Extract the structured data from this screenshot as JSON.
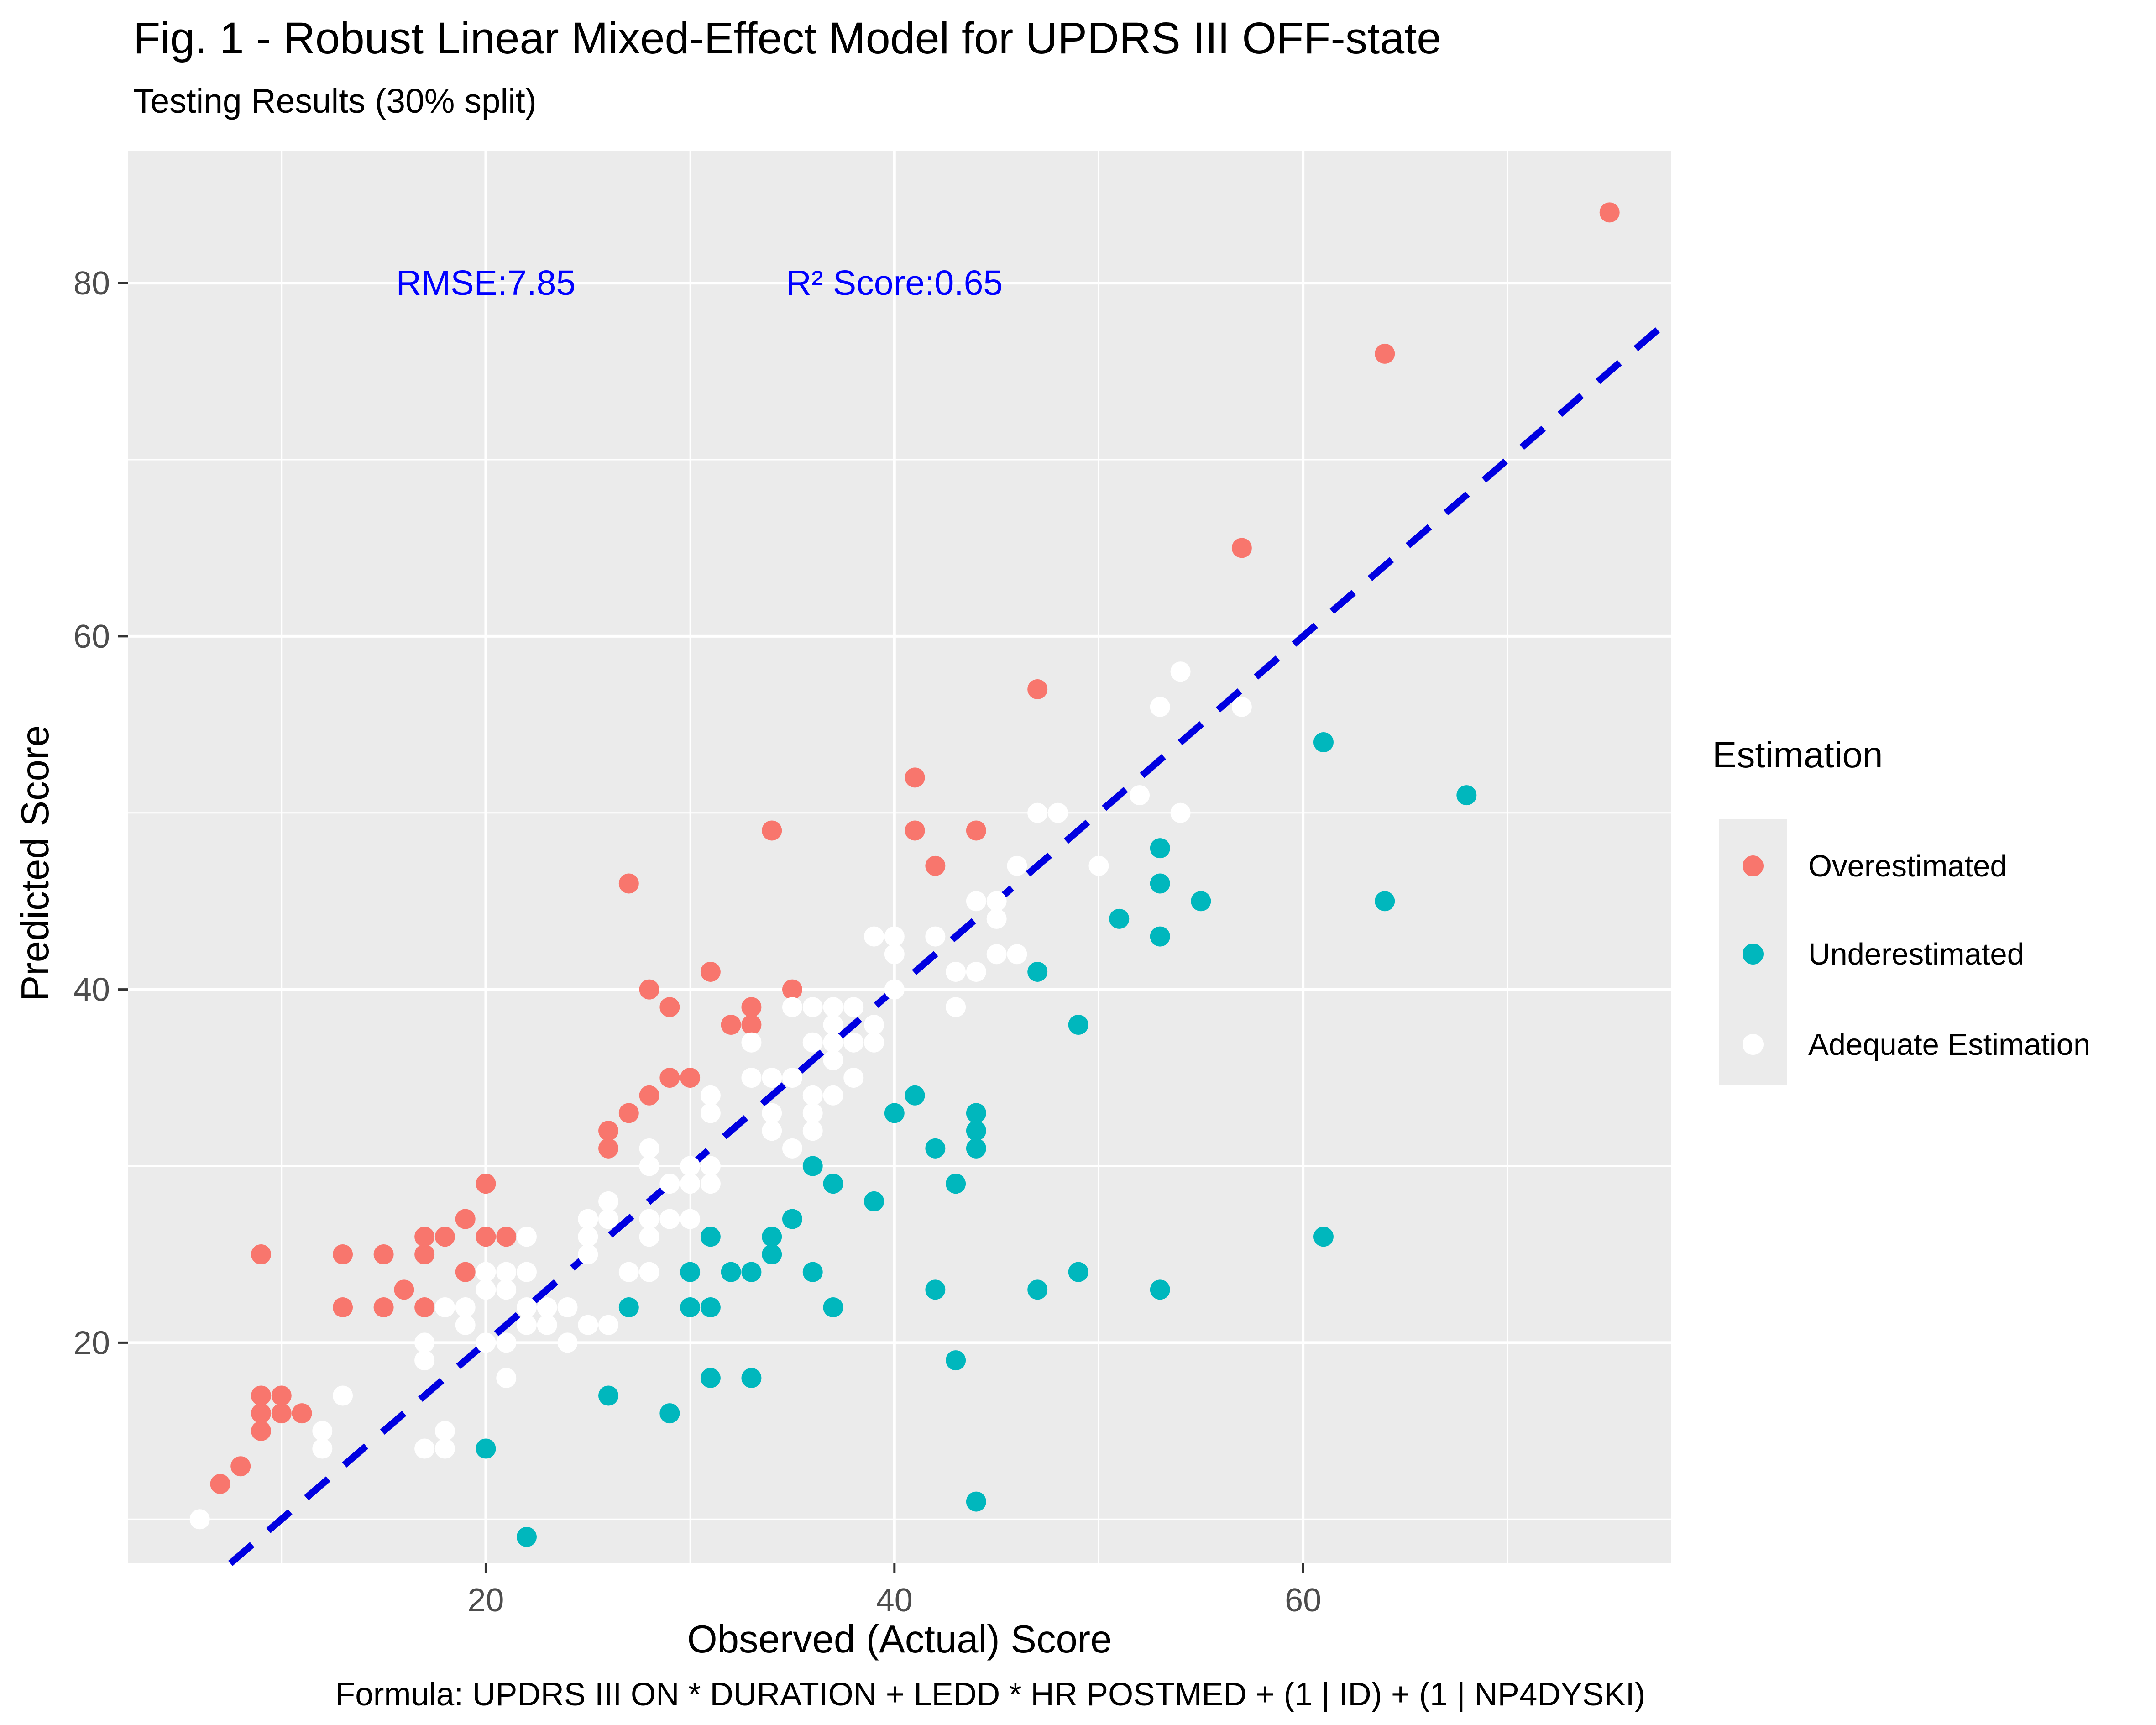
{
  "title": "Fig. 1 - Robust Linear Mixed-Effect Model for UPDRS III OFF-state",
  "subtitle": "Testing Results (30% split)",
  "caption": "Formula: UPDRS III ON * DURATION + LEDD * HR POSTMED + (1 | ID) + (1 | NP4DYSKI)",
  "colors": {
    "overestimated": "#F8766D",
    "underestimated": "#00B7BD",
    "adequate": "#FFFFFF",
    "panel_bg": "#EBEBEB",
    "grid": "#FFFFFF",
    "annotation_blue": "#0000FF",
    "identity_line_blue": "#0000E0",
    "tick_label": "#4D4D4D",
    "text": "#000000"
  },
  "legend": {
    "title": "Estimation",
    "items": [
      {
        "label": "Overestimated",
        "color_key": "overestimated"
      },
      {
        "label": "Underestimated",
        "color_key": "underestimated"
      },
      {
        "label": "Adequate Estimation",
        "color_key": "adequate"
      }
    ]
  },
  "chart_data": {
    "type": "scatter",
    "title": "Fig. 1 - Robust Linear Mixed-Effect Model for UPDRS III OFF-state",
    "subtitle": "Testing Results (30% split)",
    "xlabel": "Observed (Actual) Score",
    "ylabel": "Predicted Score",
    "xlim": [
      2.5,
      78
    ],
    "ylim": [
      7.5,
      87.5
    ],
    "x_ticks": [
      20,
      40,
      60
    ],
    "x_minor_ticks": [
      10,
      30,
      50,
      70
    ],
    "y_ticks": [
      20,
      40,
      60,
      80
    ],
    "y_minor_ticks": [
      10,
      30,
      50,
      70
    ],
    "grid": true,
    "legend_position": "right",
    "annotations": [
      {
        "text": "RMSE:7.85",
        "x": 20,
        "y": 80
      },
      {
        "text": "R² Score:0.65",
        "x": 40,
        "y": 80
      }
    ],
    "identity_line": {
      "style": "dashed",
      "equation": "y = x",
      "from": [
        7.5,
        7.5
      ],
      "to": [
        78,
        78
      ]
    },
    "series": [
      {
        "name": "Overestimated",
        "color_key": "overestimated",
        "points": [
          [
            75,
            84
          ],
          [
            64,
            76
          ],
          [
            57,
            65
          ],
          [
            47,
            57
          ],
          [
            41,
            52
          ],
          [
            44,
            49
          ],
          [
            41,
            49
          ],
          [
            34,
            49
          ],
          [
            42,
            47
          ],
          [
            27,
            46
          ],
          [
            35,
            40
          ],
          [
            31,
            41
          ],
          [
            28,
            40
          ],
          [
            29,
            39
          ],
          [
            33,
            39
          ],
          [
            32,
            38
          ],
          [
            33,
            38
          ],
          [
            28,
            34
          ],
          [
            29,
            35
          ],
          [
            30,
            35
          ],
          [
            27,
            33
          ],
          [
            26,
            32
          ],
          [
            26,
            31
          ],
          [
            20,
            29
          ],
          [
            19,
            27
          ],
          [
            17,
            26
          ],
          [
            18,
            26
          ],
          [
            20,
            26
          ],
          [
            21,
            26
          ],
          [
            9,
            25
          ],
          [
            13,
            25
          ],
          [
            15,
            25
          ],
          [
            17,
            25
          ],
          [
            19,
            24
          ],
          [
            16,
            23
          ],
          [
            13,
            22
          ],
          [
            15,
            22
          ],
          [
            17,
            22
          ],
          [
            9,
            17
          ],
          [
            10,
            17
          ],
          [
            9,
            16
          ],
          [
            10,
            16
          ],
          [
            11,
            16
          ],
          [
            9,
            15
          ],
          [
            8,
            13
          ],
          [
            7,
            12
          ]
        ]
      },
      {
        "name": "Underestimated",
        "color_key": "underestimated",
        "points": [
          [
            61,
            54
          ],
          [
            68,
            51
          ],
          [
            53,
            48
          ],
          [
            53,
            46
          ],
          [
            55,
            45
          ],
          [
            64,
            45
          ],
          [
            51,
            44
          ],
          [
            53,
            43
          ],
          [
            47,
            41
          ],
          [
            49,
            38
          ],
          [
            41,
            34
          ],
          [
            40,
            33
          ],
          [
            44,
            33
          ],
          [
            44,
            32
          ],
          [
            44,
            31
          ],
          [
            42,
            31
          ],
          [
            43,
            29
          ],
          [
            36,
            30
          ],
          [
            37,
            29
          ],
          [
            39,
            28
          ],
          [
            35,
            27
          ],
          [
            34,
            26
          ],
          [
            34,
            25
          ],
          [
            31,
            26
          ],
          [
            30,
            24
          ],
          [
            32,
            24
          ],
          [
            33,
            24
          ],
          [
            36,
            24
          ],
          [
            30,
            22
          ],
          [
            31,
            22
          ],
          [
            37,
            22
          ],
          [
            42,
            23
          ],
          [
            47,
            23
          ],
          [
            49,
            24
          ],
          [
            53,
            23
          ],
          [
            61,
            26
          ],
          [
            43,
            19
          ],
          [
            31,
            18
          ],
          [
            33,
            18
          ],
          [
            29,
            16
          ],
          [
            26,
            17
          ],
          [
            27,
            22
          ],
          [
            20,
            14
          ],
          [
            22,
            9
          ],
          [
            44,
            11
          ]
        ]
      },
      {
        "name": "Adequate Estimation",
        "color_key": "adequate",
        "points": [
          [
            54,
            58
          ],
          [
            53,
            56
          ],
          [
            57,
            56
          ],
          [
            52,
            51
          ],
          [
            54,
            50
          ],
          [
            50,
            47
          ],
          [
            47,
            50
          ],
          [
            48,
            50
          ],
          [
            46,
            47
          ],
          [
            44,
            45
          ],
          [
            45,
            45
          ],
          [
            45,
            44
          ],
          [
            42,
            43
          ],
          [
            39,
            43
          ],
          [
            40,
            43
          ],
          [
            40,
            42
          ],
          [
            45,
            42
          ],
          [
            46,
            42
          ],
          [
            43,
            41
          ],
          [
            44,
            41
          ],
          [
            40,
            40
          ],
          [
            43,
            39
          ],
          [
            35,
            39
          ],
          [
            36,
            39
          ],
          [
            37,
            39
          ],
          [
            38,
            39
          ],
          [
            37,
            38
          ],
          [
            39,
            38
          ],
          [
            36,
            37
          ],
          [
            37,
            37
          ],
          [
            38,
            37
          ],
          [
            39,
            37
          ],
          [
            33,
            37
          ],
          [
            37,
            36
          ],
          [
            33,
            35
          ],
          [
            34,
            35
          ],
          [
            35,
            35
          ],
          [
            38,
            35
          ],
          [
            36,
            34
          ],
          [
            37,
            34
          ],
          [
            34,
            33
          ],
          [
            34,
            32
          ],
          [
            36,
            33
          ],
          [
            36,
            32
          ],
          [
            35,
            31
          ],
          [
            31,
            34
          ],
          [
            31,
            33
          ],
          [
            28,
            31
          ],
          [
            28,
            30
          ],
          [
            30,
            30
          ],
          [
            31,
            30
          ],
          [
            29,
            29
          ],
          [
            30,
            29
          ],
          [
            31,
            29
          ],
          [
            28,
            27
          ],
          [
            29,
            27
          ],
          [
            30,
            27
          ],
          [
            28,
            26
          ],
          [
            25,
            27
          ],
          [
            25,
            26
          ],
          [
            25,
            25
          ],
          [
            26,
            28
          ],
          [
            26,
            27
          ],
          [
            27,
            24
          ],
          [
            28,
            24
          ],
          [
            26,
            21
          ],
          [
            22,
            26
          ],
          [
            20,
            24
          ],
          [
            21,
            24
          ],
          [
            22,
            24
          ],
          [
            20,
            23
          ],
          [
            21,
            23
          ],
          [
            18,
            22
          ],
          [
            19,
            22
          ],
          [
            22,
            22
          ],
          [
            23,
            22
          ],
          [
            24,
            22
          ],
          [
            19,
            21
          ],
          [
            22,
            21
          ],
          [
            23,
            21
          ],
          [
            25,
            21
          ],
          [
            20,
            20
          ],
          [
            21,
            20
          ],
          [
            24,
            20
          ],
          [
            17,
            20
          ],
          [
            17,
            19
          ],
          [
            21,
            18
          ],
          [
            18,
            15
          ],
          [
            17,
            14
          ],
          [
            18,
            14
          ],
          [
            13,
            17
          ],
          [
            12,
            15
          ],
          [
            12,
            14
          ],
          [
            6,
            10
          ]
        ]
      }
    ]
  }
}
